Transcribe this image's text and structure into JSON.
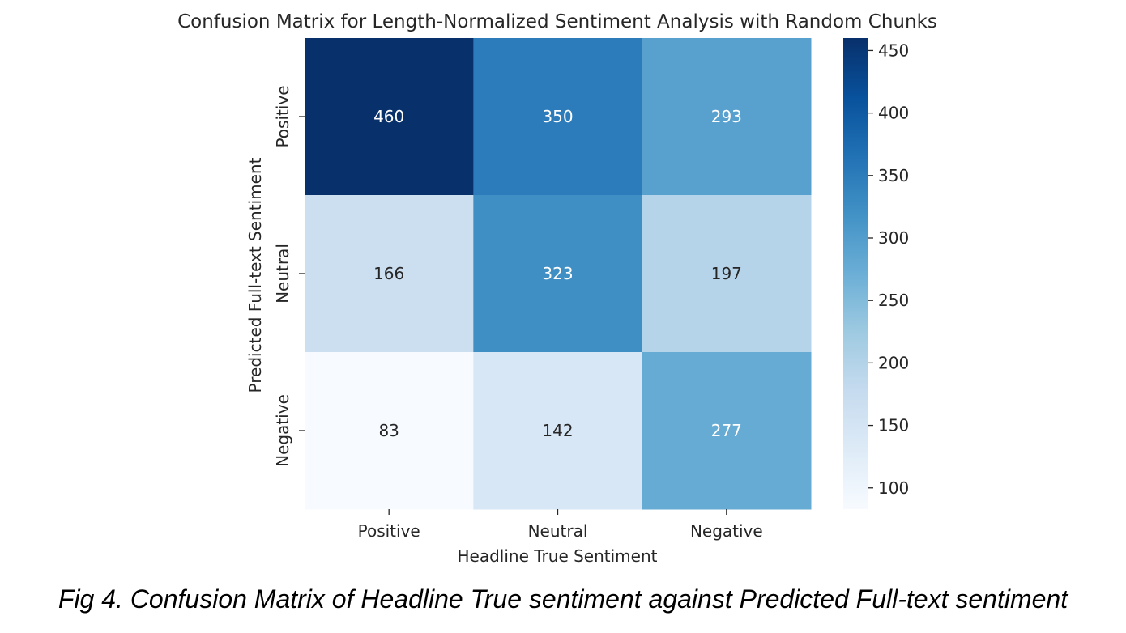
{
  "chart_data": {
    "type": "heatmap",
    "title": "Confusion Matrix for Length-Normalized Sentiment Analysis with Random Chunks",
    "xlabel": "Headline True Sentiment",
    "ylabel": "Predicted Full-text Sentiment",
    "x_categories": [
      "Positive",
      "Neutral",
      "Negative"
    ],
    "y_categories": [
      "Positive",
      "Neutral",
      "Negative"
    ],
    "values": [
      [
        460,
        350,
        293
      ],
      [
        166,
        323,
        197
      ],
      [
        83,
        142,
        277
      ]
    ],
    "colormap": "Blues",
    "colorbar": {
      "range": [
        83,
        460
      ],
      "ticks": [
        100,
        150,
        200,
        250,
        300,
        350,
        400,
        450
      ]
    },
    "colors": {
      "low": "#f7fbff",
      "high": "#08306b",
      "text_dark": "#262626",
      "text_light": "#ffffff"
    }
  },
  "caption": "Fig 4. Confusion Matrix of Headline True sentiment against Predicted Full-text sentiment"
}
